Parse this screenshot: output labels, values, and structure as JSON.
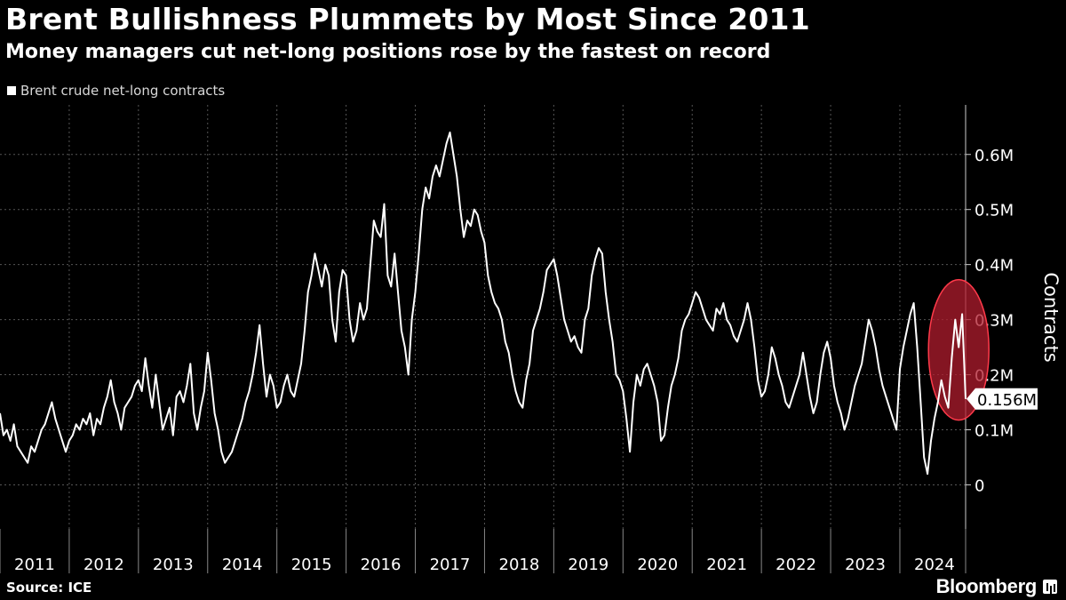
{
  "header": {
    "title": "Brent Bullishness Plummets by Most Since 2011",
    "subtitle": "Money managers cut net-long positions rose by the fastest on record"
  },
  "legend": {
    "label": "Brent crude net-long contracts"
  },
  "footer": {
    "source": "Source: ICE",
    "brand": "Bloomberg"
  },
  "colors": {
    "background": "#000000",
    "line": "#ffffff",
    "grid": "#555555",
    "highlight_fill": "#b01c2e",
    "highlight_stroke": "#ff3a4a"
  },
  "chart_data": {
    "type": "line",
    "title": "Brent Bullishness Plummets by Most Since 2011",
    "subtitle": "Money managers cut net-long positions rose by the fastest on record",
    "ylabel": "Contracts",
    "xlabel": "",
    "x_categories": [
      "2011",
      "2012",
      "2013",
      "2014",
      "2015",
      "2016",
      "2017",
      "2018",
      "2019",
      "2020",
      "2021",
      "2022",
      "2023",
      "2024"
    ],
    "y_ticks": [
      0,
      100000,
      200000,
      300000,
      400000,
      500000,
      600000
    ],
    "y_tick_labels": [
      "0",
      "0.1M",
      "0.2M",
      "0.3M",
      "0.4M",
      "0.5M",
      "0.6M"
    ],
    "ylim": [
      -80000,
      690000
    ],
    "xlim": [
      2011.0,
      2024.95
    ],
    "grid": true,
    "legend_position": "top-left",
    "last_value_label": "0.156M",
    "highlight": "red ellipse around latest 2024 readings",
    "series": [
      {
        "name": "Brent crude net-long contracts",
        "x": [
          2011.0,
          2011.05,
          2011.1,
          2011.15,
          2011.2,
          2011.25,
          2011.3,
          2011.35,
          2011.4,
          2011.45,
          2011.5,
          2011.55,
          2011.6,
          2011.65,
          2011.7,
          2011.75,
          2011.8,
          2011.85,
          2011.9,
          2011.95,
          2012.0,
          2012.05,
          2012.1,
          2012.15,
          2012.2,
          2012.25,
          2012.3,
          2012.35,
          2012.4,
          2012.45,
          2012.5,
          2012.55,
          2012.6,
          2012.65,
          2012.7,
          2012.75,
          2012.8,
          2012.85,
          2012.9,
          2012.95,
          2013.0,
          2013.05,
          2013.1,
          2013.15,
          2013.2,
          2013.25,
          2013.3,
          2013.35,
          2013.4,
          2013.45,
          2013.5,
          2013.55,
          2013.6,
          2013.65,
          2013.7,
          2013.75,
          2013.8,
          2013.85,
          2013.9,
          2013.95,
          2014.0,
          2014.05,
          2014.1,
          2014.15,
          2014.2,
          2014.25,
          2014.3,
          2014.35,
          2014.4,
          2014.45,
          2014.5,
          2014.55,
          2014.6,
          2014.65,
          2014.7,
          2014.75,
          2014.8,
          2014.85,
          2014.9,
          2014.95,
          2015.0,
          2015.05,
          2015.1,
          2015.15,
          2015.2,
          2015.25,
          2015.3,
          2015.35,
          2015.4,
          2015.45,
          2015.5,
          2015.55,
          2015.6,
          2015.65,
          2015.7,
          2015.75,
          2015.8,
          2015.85,
          2015.9,
          2015.95,
          2016.0,
          2016.05,
          2016.1,
          2016.15,
          2016.2,
          2016.25,
          2016.3,
          2016.35,
          2016.4,
          2016.45,
          2016.5,
          2016.55,
          2016.6,
          2016.65,
          2016.7,
          2016.75,
          2016.8,
          2016.85,
          2016.9,
          2016.95,
          2017.0,
          2017.05,
          2017.1,
          2017.15,
          2017.2,
          2017.25,
          2017.3,
          2017.35,
          2017.4,
          2017.45,
          2017.5,
          2017.55,
          2017.6,
          2017.65,
          2017.7,
          2017.75,
          2017.8,
          2017.85,
          2017.9,
          2017.95,
          2018.0,
          2018.05,
          2018.1,
          2018.15,
          2018.2,
          2018.25,
          2018.3,
          2018.35,
          2018.4,
          2018.45,
          2018.5,
          2018.55,
          2018.6,
          2018.65,
          2018.7,
          2018.75,
          2018.8,
          2018.85,
          2018.9,
          2018.95,
          2019.0,
          2019.05,
          2019.1,
          2019.15,
          2019.2,
          2019.25,
          2019.3,
          2019.35,
          2019.4,
          2019.45,
          2019.5,
          2019.55,
          2019.6,
          2019.65,
          2019.7,
          2019.75,
          2019.8,
          2019.85,
          2019.9,
          2019.95,
          2020.0,
          2020.05,
          2020.1,
          2020.15,
          2020.2,
          2020.25,
          2020.3,
          2020.35,
          2020.4,
          2020.45,
          2020.5,
          2020.55,
          2020.6,
          2020.65,
          2020.7,
          2020.75,
          2020.8,
          2020.85,
          2020.9,
          2020.95,
          2021.0,
          2021.05,
          2021.1,
          2021.15,
          2021.2,
          2021.25,
          2021.3,
          2021.35,
          2021.4,
          2021.45,
          2021.5,
          2021.55,
          2021.6,
          2021.65,
          2021.7,
          2021.75,
          2021.8,
          2021.85,
          2021.9,
          2021.95,
          2022.0,
          2022.05,
          2022.1,
          2022.15,
          2022.2,
          2022.25,
          2022.3,
          2022.35,
          2022.4,
          2022.45,
          2022.5,
          2022.55,
          2022.6,
          2022.65,
          2022.7,
          2022.75,
          2022.8,
          2022.85,
          2022.9,
          2022.95,
          2023.0,
          2023.05,
          2023.1,
          2023.15,
          2023.2,
          2023.25,
          2023.3,
          2023.35,
          2023.4,
          2023.45,
          2023.5,
          2023.55,
          2023.6,
          2023.65,
          2023.7,
          2023.75,
          2023.8,
          2023.85,
          2023.9,
          2023.95,
          2024.0,
          2024.05,
          2024.1,
          2024.15,
          2024.2,
          2024.25,
          2024.3,
          2024.35,
          2024.4,
          2024.45,
          2024.5,
          2024.55,
          2024.6,
          2024.65,
          2024.7,
          2024.75,
          2024.8,
          2024.85,
          2024.9,
          2024.95
        ],
        "values": [
          130000,
          90000,
          100000,
          80000,
          110000,
          70000,
          60000,
          50000,
          40000,
          70000,
          60000,
          80000,
          100000,
          110000,
          130000,
          150000,
          120000,
          100000,
          80000,
          60000,
          80000,
          90000,
          110000,
          100000,
          120000,
          110000,
          130000,
          90000,
          120000,
          110000,
          140000,
          160000,
          190000,
          150000,
          130000,
          100000,
          140000,
          150000,
          160000,
          180000,
          190000,
          170000,
          230000,
          180000,
          140000,
          200000,
          150000,
          100000,
          120000,
          140000,
          90000,
          160000,
          170000,
          150000,
          180000,
          220000,
          130000,
          100000,
          140000,
          170000,
          240000,
          190000,
          130000,
          100000,
          60000,
          40000,
          50000,
          60000,
          80000,
          100000,
          120000,
          150000,
          170000,
          200000,
          240000,
          290000,
          220000,
          160000,
          200000,
          180000,
          140000,
          150000,
          180000,
          200000,
          170000,
          160000,
          190000,
          220000,
          280000,
          350000,
          380000,
          420000,
          390000,
          360000,
          400000,
          380000,
          300000,
          260000,
          350000,
          390000,
          380000,
          300000,
          260000,
          280000,
          330000,
          300000,
          320000,
          400000,
          480000,
          460000,
          450000,
          510000,
          380000,
          360000,
          420000,
          350000,
          280000,
          250000,
          200000,
          300000,
          350000,
          420000,
          500000,
          540000,
          520000,
          560000,
          580000,
          560000,
          590000,
          620000,
          640000,
          600000,
          560000,
          500000,
          450000,
          480000,
          470000,
          500000,
          490000,
          460000,
          440000,
          380000,
          350000,
          330000,
          320000,
          300000,
          260000,
          240000,
          200000,
          170000,
          150000,
          140000,
          190000,
          220000,
          280000,
          300000,
          320000,
          350000,
          390000,
          400000,
          410000,
          380000,
          340000,
          300000,
          280000,
          260000,
          270000,
          250000,
          240000,
          300000,
          320000,
          380000,
          410000,
          430000,
          420000,
          350000,
          300000,
          260000,
          200000,
          190000,
          170000,
          120000,
          60000,
          150000,
          200000,
          180000,
          210000,
          220000,
          200000,
          180000,
          150000,
          80000,
          90000,
          140000,
          180000,
          200000,
          230000,
          280000,
          300000,
          310000,
          330000,
          350000,
          340000,
          320000,
          300000,
          290000,
          280000,
          320000,
          310000,
          330000,
          300000,
          290000,
          270000,
          260000,
          280000,
          300000,
          330000,
          300000,
          250000,
          190000,
          160000,
          170000,
          200000,
          250000,
          230000,
          200000,
          180000,
          150000,
          140000,
          160000,
          180000,
          200000,
          240000,
          200000,
          160000,
          130000,
          150000,
          200000,
          240000,
          260000,
          230000,
          180000,
          150000,
          130000,
          100000,
          120000,
          150000,
          180000,
          200000,
          220000,
          260000,
          300000,
          280000,
          250000,
          210000,
          180000,
          160000,
          140000,
          120000,
          100000,
          210000,
          250000,
          280000,
          310000,
          330000,
          250000,
          150000,
          50000,
          20000,
          80000,
          120000,
          150000,
          190000,
          160000,
          140000,
          230000,
          300000,
          250000,
          310000,
          156000
        ]
      }
    ]
  }
}
